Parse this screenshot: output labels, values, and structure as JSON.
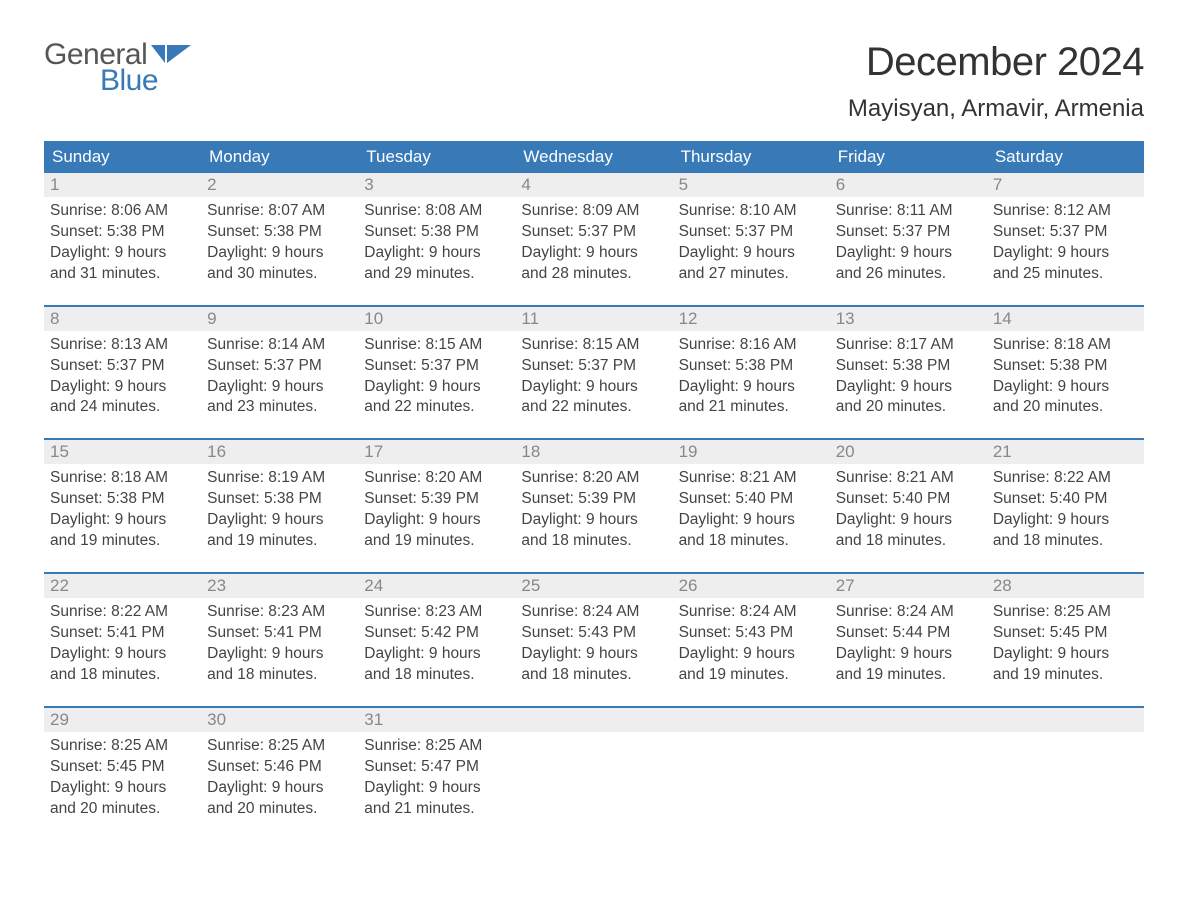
{
  "logo": {
    "text1": "General",
    "text2": "Blue",
    "color_blue": "#3879b8",
    "color_gray": "#555555"
  },
  "title": "December 2024",
  "location": "Mayisyan, Armavir, Armenia",
  "weekday_header_bg": "#3879b8",
  "weekday_header_fg": "#ffffff",
  "daynum_bg": "#eeeeee",
  "daynum_fg": "#888888",
  "cell_text_color": "#444444",
  "week_border_color": "#3879b8",
  "weekdays": [
    "Sunday",
    "Monday",
    "Tuesday",
    "Wednesday",
    "Thursday",
    "Friday",
    "Saturday"
  ],
  "weeks": [
    [
      {
        "n": "1",
        "sunrise": "8:06 AM",
        "sunset": "5:38 PM",
        "daylight": "9 hours and 31 minutes."
      },
      {
        "n": "2",
        "sunrise": "8:07 AM",
        "sunset": "5:38 PM",
        "daylight": "9 hours and 30 minutes."
      },
      {
        "n": "3",
        "sunrise": "8:08 AM",
        "sunset": "5:38 PM",
        "daylight": "9 hours and 29 minutes."
      },
      {
        "n": "4",
        "sunrise": "8:09 AM",
        "sunset": "5:37 PM",
        "daylight": "9 hours and 28 minutes."
      },
      {
        "n": "5",
        "sunrise": "8:10 AM",
        "sunset": "5:37 PM",
        "daylight": "9 hours and 27 minutes."
      },
      {
        "n": "6",
        "sunrise": "8:11 AM",
        "sunset": "5:37 PM",
        "daylight": "9 hours and 26 minutes."
      },
      {
        "n": "7",
        "sunrise": "8:12 AM",
        "sunset": "5:37 PM",
        "daylight": "9 hours and 25 minutes."
      }
    ],
    [
      {
        "n": "8",
        "sunrise": "8:13 AM",
        "sunset": "5:37 PM",
        "daylight": "9 hours and 24 minutes."
      },
      {
        "n": "9",
        "sunrise": "8:14 AM",
        "sunset": "5:37 PM",
        "daylight": "9 hours and 23 minutes."
      },
      {
        "n": "10",
        "sunrise": "8:15 AM",
        "sunset": "5:37 PM",
        "daylight": "9 hours and 22 minutes."
      },
      {
        "n": "11",
        "sunrise": "8:15 AM",
        "sunset": "5:37 PM",
        "daylight": "9 hours and 22 minutes."
      },
      {
        "n": "12",
        "sunrise": "8:16 AM",
        "sunset": "5:38 PM",
        "daylight": "9 hours and 21 minutes."
      },
      {
        "n": "13",
        "sunrise": "8:17 AM",
        "sunset": "5:38 PM",
        "daylight": "9 hours and 20 minutes."
      },
      {
        "n": "14",
        "sunrise": "8:18 AM",
        "sunset": "5:38 PM",
        "daylight": "9 hours and 20 minutes."
      }
    ],
    [
      {
        "n": "15",
        "sunrise": "8:18 AM",
        "sunset": "5:38 PM",
        "daylight": "9 hours and 19 minutes."
      },
      {
        "n": "16",
        "sunrise": "8:19 AM",
        "sunset": "5:38 PM",
        "daylight": "9 hours and 19 minutes."
      },
      {
        "n": "17",
        "sunrise": "8:20 AM",
        "sunset": "5:39 PM",
        "daylight": "9 hours and 19 minutes."
      },
      {
        "n": "18",
        "sunrise": "8:20 AM",
        "sunset": "5:39 PM",
        "daylight": "9 hours and 18 minutes."
      },
      {
        "n": "19",
        "sunrise": "8:21 AM",
        "sunset": "5:40 PM",
        "daylight": "9 hours and 18 minutes."
      },
      {
        "n": "20",
        "sunrise": "8:21 AM",
        "sunset": "5:40 PM",
        "daylight": "9 hours and 18 minutes."
      },
      {
        "n": "21",
        "sunrise": "8:22 AM",
        "sunset": "5:40 PM",
        "daylight": "9 hours and 18 minutes."
      }
    ],
    [
      {
        "n": "22",
        "sunrise": "8:22 AM",
        "sunset": "5:41 PM",
        "daylight": "9 hours and 18 minutes."
      },
      {
        "n": "23",
        "sunrise": "8:23 AM",
        "sunset": "5:41 PM",
        "daylight": "9 hours and 18 minutes."
      },
      {
        "n": "24",
        "sunrise": "8:23 AM",
        "sunset": "5:42 PM",
        "daylight": "9 hours and 18 minutes."
      },
      {
        "n": "25",
        "sunrise": "8:24 AM",
        "sunset": "5:43 PM",
        "daylight": "9 hours and 18 minutes."
      },
      {
        "n": "26",
        "sunrise": "8:24 AM",
        "sunset": "5:43 PM",
        "daylight": "9 hours and 19 minutes."
      },
      {
        "n": "27",
        "sunrise": "8:24 AM",
        "sunset": "5:44 PM",
        "daylight": "9 hours and 19 minutes."
      },
      {
        "n": "28",
        "sunrise": "8:25 AM",
        "sunset": "5:45 PM",
        "daylight": "9 hours and 19 minutes."
      }
    ],
    [
      {
        "n": "29",
        "sunrise": "8:25 AM",
        "sunset": "5:45 PM",
        "daylight": "9 hours and 20 minutes."
      },
      {
        "n": "30",
        "sunrise": "8:25 AM",
        "sunset": "5:46 PM",
        "daylight": "9 hours and 20 minutes."
      },
      {
        "n": "31",
        "sunrise": "8:25 AM",
        "sunset": "5:47 PM",
        "daylight": "9 hours and 21 minutes."
      },
      null,
      null,
      null,
      null
    ]
  ],
  "labels": {
    "sunrise": "Sunrise:",
    "sunset": "Sunset:",
    "daylight": "Daylight:"
  }
}
